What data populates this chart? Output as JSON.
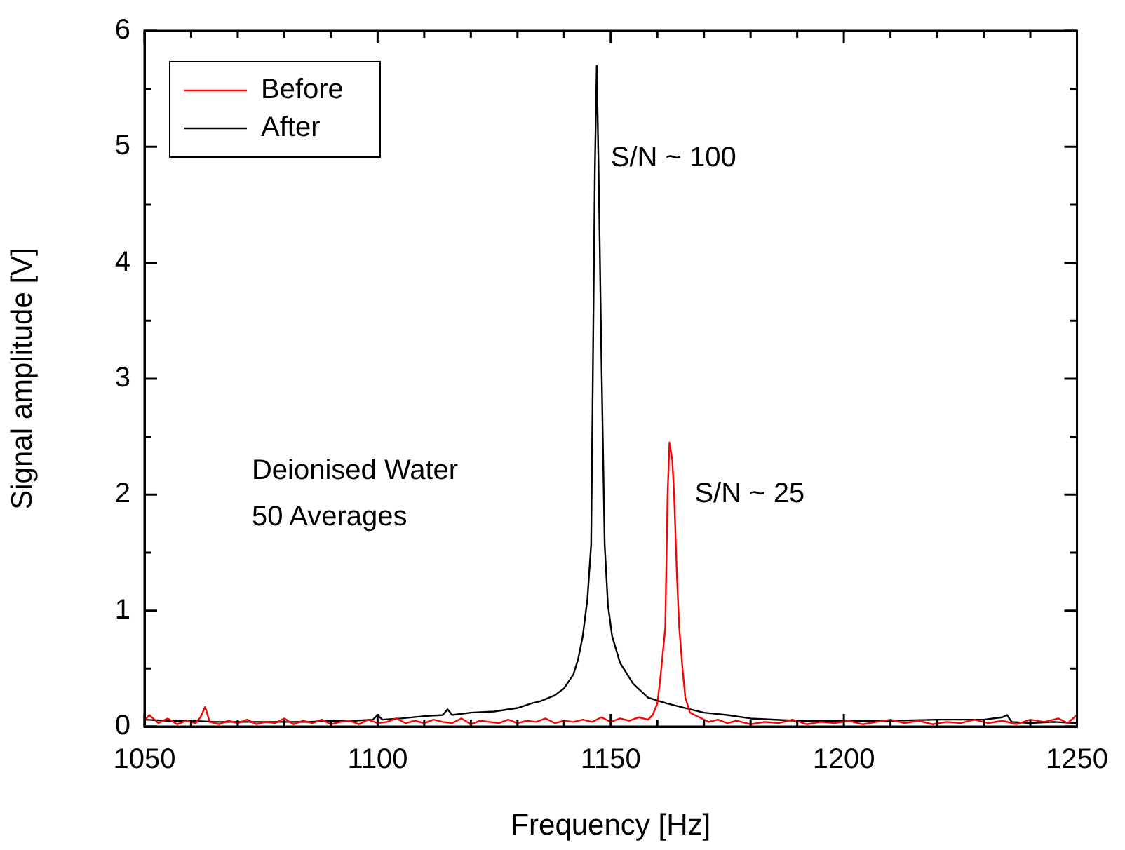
{
  "chart_data": {
    "type": "line",
    "xlabel": "Frequency [Hz]",
    "ylabel": "Signal amplitude [V]",
    "xlim": [
      1050,
      1250
    ],
    "ylim": [
      0,
      6
    ],
    "xticks": [
      1050,
      {
        "value": 1060,
        "label": null
      },
      {
        "value": 1070,
        "label": null
      },
      {
        "value": 1080,
        "label": null
      },
      {
        "value": 1090,
        "label": null
      },
      1100,
      {
        "value": 1110,
        "label": null
      },
      {
        "value": 1120,
        "label": null
      },
      {
        "value": 1130,
        "label": null
      },
      {
        "value": 1140,
        "label": null
      },
      1150,
      {
        "value": 1160,
        "label": null
      },
      {
        "value": 1170,
        "label": null
      },
      {
        "value": 1180,
        "label": null
      },
      {
        "value": 1190,
        "label": null
      },
      1200,
      {
        "value": 1210,
        "label": null
      },
      {
        "value": 1220,
        "label": null
      },
      {
        "value": 1230,
        "label": null
      },
      {
        "value": 1240,
        "label": null
      },
      1250
    ],
    "yticks": [
      0,
      {
        "value": 0.5,
        "label": null
      },
      1,
      {
        "value": 1.5,
        "label": null
      },
      2,
      {
        "value": 2.5,
        "label": null
      },
      3,
      {
        "value": 3.5,
        "label": null
      },
      4,
      {
        "value": 4.5,
        "label": null
      },
      5,
      {
        "value": 5.5,
        "label": null
      },
      6
    ],
    "grid": false,
    "legend": "top left",
    "marker": "none",
    "line_style": "solid",
    "annotations": [
      "S/N ~ 100",
      "S/N ~ 25",
      "Deionised Water",
      "50 Averages"
    ],
    "series": [
      {
        "name": "Before",
        "color": "#ff0000",
        "x": [
          1050,
          1051,
          1053,
          1055,
          1057,
          1059,
          1061,
          1062,
          1063,
          1064,
          1066,
          1068,
          1070,
          1072,
          1074,
          1076,
          1078,
          1080,
          1082,
          1084,
          1086,
          1088,
          1090,
          1092,
          1094,
          1096,
          1098,
          1100,
          1102,
          1104,
          1106,
          1108,
          1110,
          1112,
          1114,
          1116,
          1118,
          1120,
          1122,
          1124,
          1126,
          1128,
          1130,
          1132,
          1134,
          1136,
          1138,
          1140,
          1142,
          1144,
          1146,
          1148,
          1150,
          1152,
          1154,
          1156,
          1158,
          1159,
          1160,
          1160.6,
          1161.7,
          1162.2,
          1162.6,
          1163.2,
          1163.6,
          1164.2,
          1164.7,
          1165.4,
          1166,
          1167,
          1169,
          1171,
          1173,
          1175,
          1177,
          1180,
          1183,
          1186,
          1189,
          1192,
          1195,
          1198,
          1201,
          1204,
          1207,
          1210,
          1213,
          1216,
          1219,
          1222,
          1225,
          1228,
          1231,
          1234,
          1237,
          1240,
          1243,
          1246,
          1248,
          1250
        ],
        "values": [
          0.05,
          0.1,
          0.03,
          0.07,
          0.02,
          0.05,
          0.03,
          0.08,
          0.17,
          0.04,
          0.02,
          0.05,
          0.03,
          0.06,
          0.02,
          0.04,
          0.03,
          0.07,
          0.02,
          0.05,
          0.03,
          0.06,
          0.02,
          0.04,
          0.05,
          0.02,
          0.06,
          0.03,
          0.04,
          0.07,
          0.03,
          0.05,
          0.03,
          0.06,
          0.04,
          0.03,
          0.07,
          0.02,
          0.05,
          0.04,
          0.03,
          0.06,
          0.03,
          0.05,
          0.04,
          0.07,
          0.03,
          0.05,
          0.04,
          0.06,
          0.04,
          0.08,
          0.04,
          0.07,
          0.05,
          0.08,
          0.06,
          0.1,
          0.2,
          0.4,
          0.85,
          2.0,
          2.45,
          2.3,
          2.0,
          1.3,
          0.85,
          0.5,
          0.25,
          0.12,
          0.08,
          0.04,
          0.06,
          0.03,
          0.05,
          0.02,
          0.04,
          0.03,
          0.06,
          0.02,
          0.04,
          0.03,
          0.05,
          0.02,
          0.04,
          0.06,
          0.03,
          0.05,
          0.02,
          0.04,
          0.03,
          0.06,
          0.03,
          0.05,
          0.02,
          0.06,
          0.04,
          0.07,
          0.03,
          0.1
        ]
      },
      {
        "name": "After",
        "color": "#000000",
        "x": [
          1050,
          1055,
          1060,
          1065,
          1070,
          1075,
          1080,
          1085,
          1090,
          1095,
          1099,
          1100,
          1101,
          1105,
          1110,
          1114,
          1115,
          1116,
          1120,
          1125,
          1130,
          1133,
          1135,
          1138,
          1140,
          1142,
          1143,
          1144,
          1145,
          1145.8,
          1146.2,
          1146.6,
          1147,
          1147.4,
          1148,
          1148.7,
          1149.4,
          1150.3,
          1152,
          1154.8,
          1158,
          1162,
          1166,
          1170,
          1175,
          1180,
          1190,
          1200,
          1210,
          1220,
          1230,
          1234,
          1235,
          1236,
          1240,
          1245,
          1250
        ],
        "values": [
          0.06,
          0.05,
          0.05,
          0.04,
          0.04,
          0.04,
          0.04,
          0.04,
          0.05,
          0.05,
          0.06,
          0.1,
          0.06,
          0.07,
          0.09,
          0.1,
          0.15,
          0.1,
          0.12,
          0.13,
          0.16,
          0.2,
          0.22,
          0.27,
          0.33,
          0.45,
          0.58,
          0.78,
          1.1,
          1.57,
          3.18,
          4.8,
          5.7,
          4.8,
          3.18,
          1.57,
          1.05,
          0.78,
          0.55,
          0.37,
          0.25,
          0.2,
          0.16,
          0.12,
          0.1,
          0.07,
          0.05,
          0.05,
          0.05,
          0.06,
          0.06,
          0.08,
          0.1,
          0.04,
          0.03,
          0.04,
          0.03
        ]
      }
    ]
  }
}
